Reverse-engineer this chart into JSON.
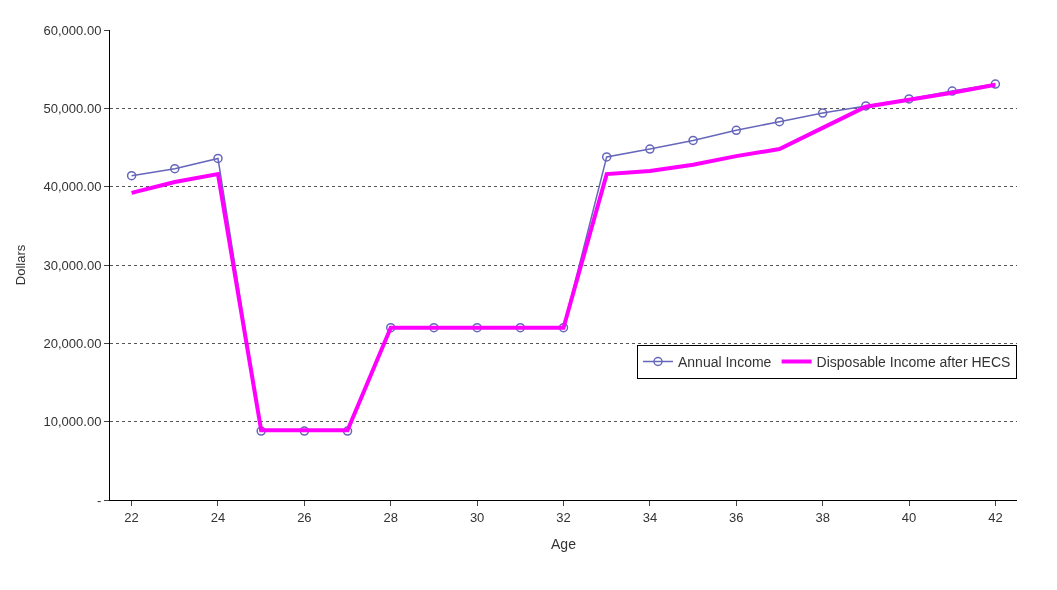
{
  "chart_data": {
    "type": "line",
    "xlabel": "Age",
    "ylabel": "Dollars",
    "x": [
      22,
      23,
      24,
      25,
      26,
      27,
      28,
      29,
      30,
      31,
      32,
      33,
      34,
      35,
      36,
      37,
      38,
      39,
      40,
      41,
      42
    ],
    "series": [
      {
        "name": "Annual Income",
        "color": "#6666bb",
        "marker": "circle",
        "values": [
          41400,
          42300,
          43600,
          8800,
          8800,
          8800,
          22000,
          22000,
          22000,
          22000,
          22000,
          43800,
          44800,
          45900,
          47200,
          48300,
          49400,
          50300,
          51200,
          52200,
          53100
        ]
      },
      {
        "name": "Disposable Income after HECS",
        "color": "#ff00ff",
        "marker": "none",
        "values": [
          39200,
          40600,
          41600,
          8900,
          8900,
          8900,
          22000,
          22000,
          22000,
          22000,
          22000,
          41600,
          42000,
          42800,
          43900,
          44800,
          47500,
          50200,
          51100,
          52000,
          53000
        ]
      }
    ],
    "xlim": [
      21.5,
      42.5
    ],
    "xticks": [
      22,
      24,
      26,
      28,
      30,
      32,
      34,
      36,
      38,
      40,
      42
    ],
    "ylim": [
      0,
      60000
    ],
    "yticks": [
      {
        "value": 0,
        "label": "-"
      },
      {
        "value": 10000,
        "label": "10,000.00"
      },
      {
        "value": 20000,
        "label": "20,000.00"
      },
      {
        "value": 30000,
        "label": "30,000.00"
      },
      {
        "value": 40000,
        "label": "40,000.00"
      },
      {
        "value": 50000,
        "label": "50,000.00"
      },
      {
        "value": 60000,
        "label": "60,000.00"
      }
    ],
    "grid": "y",
    "legend": "bottom right"
  }
}
